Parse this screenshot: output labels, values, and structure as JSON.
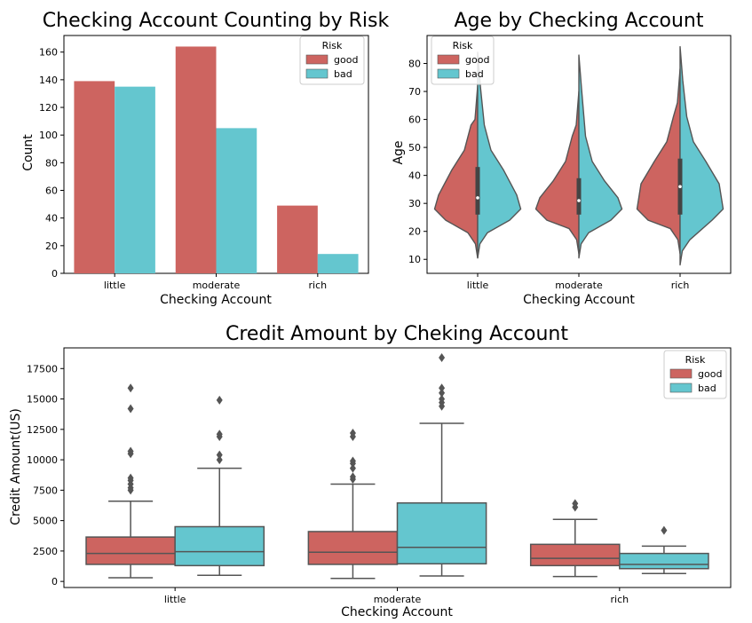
{
  "colors": {
    "good": "#cd6460",
    "bad": "#64c6cf",
    "line": "#555555",
    "axis": "#000000"
  },
  "chart_data": [
    {
      "id": "bar",
      "type": "bar",
      "title": "Checking Account Counting by Risk",
      "xlabel": "Checking Account",
      "ylabel": "Count",
      "categories": [
        "little",
        "moderate",
        "rich"
      ],
      "ylim": [
        0,
        172
      ],
      "yticks": [
        0,
        20,
        40,
        60,
        80,
        100,
        120,
        140,
        160
      ],
      "series": [
        {
          "name": "good",
          "values": [
            139,
            164,
            49
          ]
        },
        {
          "name": "bad",
          "values": [
            135,
            105,
            14
          ]
        }
      ],
      "legend": {
        "title": "Risk",
        "placement": "top-right"
      }
    },
    {
      "id": "violin",
      "type": "violin",
      "title": "Age by Checking Account",
      "xlabel": "Checking Account",
      "ylabel": "Age",
      "categories": [
        "little",
        "moderate",
        "rich"
      ],
      "ylim": [
        5,
        90
      ],
      "yticks": [
        10,
        20,
        30,
        40,
        50,
        60,
        70,
        80
      ],
      "series": [
        {
          "name": "good",
          "values": [
            {
              "min": 10.5,
              "max": 72,
              "q1": 26,
              "median": 32,
              "q3": 43
            },
            {
              "min": 12,
              "max": 70,
              "q1": 26,
              "median": 31,
              "q3": 39
            },
            {
              "min": 12,
              "max": 78,
              "q1": 26,
              "median": 36,
              "q3": 46
            }
          ]
        },
        {
          "name": "bad",
          "values": [
            {
              "min": 10.5,
              "max": 84,
              "q1": 26,
              "median": 32,
              "q3": 43
            },
            {
              "min": 10.5,
              "max": 83,
              "q1": 26,
              "median": 31,
              "q3": 39
            },
            {
              "min": 8,
              "max": 86,
              "q1": 26,
              "median": 36,
              "q3": 46
            }
          ]
        }
      ],
      "legend": {
        "title": "Risk",
        "placement": "top-left"
      }
    },
    {
      "id": "box",
      "type": "box",
      "title": "Credit Amount by Cheking Account",
      "xlabel": "Checking Account",
      "ylabel": "Credit Amount(US)",
      "categories": [
        "little",
        "moderate",
        "rich"
      ],
      "ylim": [
        -500,
        19200
      ],
      "yticks": [
        0,
        2500,
        5000,
        7500,
        10000,
        12500,
        15000,
        17500
      ],
      "series": [
        {
          "name": "good",
          "values": [
            {
              "whislo": 300,
              "q1": 1400,
              "median": 2300,
              "q3": 3650,
              "whishi": 6600,
              "fliers": [
                7500,
                7700,
                8000,
                8300,
                8500,
                10500,
                10700,
                14200,
                15900
              ]
            },
            {
              "whislo": 250,
              "q1": 1400,
              "median": 2400,
              "q3": 4100,
              "whishi": 8000,
              "fliers": [
                8400,
                8600,
                9300,
                9700,
                9900,
                11900,
                12200
              ]
            },
            {
              "whislo": 400,
              "q1": 1300,
              "median": 1900,
              "q3": 3050,
              "whishi": 5100,
              "fliers": [
                6100,
                6400
              ]
            }
          ]
        },
        {
          "name": "bad",
          "values": [
            {
              "whislo": 500,
              "q1": 1300,
              "median": 2450,
              "q3": 4500,
              "whishi": 9300,
              "fliers": [
                10000,
                10400,
                11900,
                12100,
                14900
              ]
            },
            {
              "whislo": 450,
              "q1": 1450,
              "median": 2800,
              "q3": 6450,
              "whishi": 13000,
              "fliers": [
                14400,
                14700,
                15000,
                15500,
                15900,
                18400
              ]
            },
            {
              "whislo": 650,
              "q1": 1050,
              "median": 1400,
              "q3": 2300,
              "whishi": 2900,
              "fliers": [
                4200
              ]
            }
          ]
        }
      ],
      "legend": {
        "title": "Risk",
        "placement": "top-right"
      }
    }
  ]
}
